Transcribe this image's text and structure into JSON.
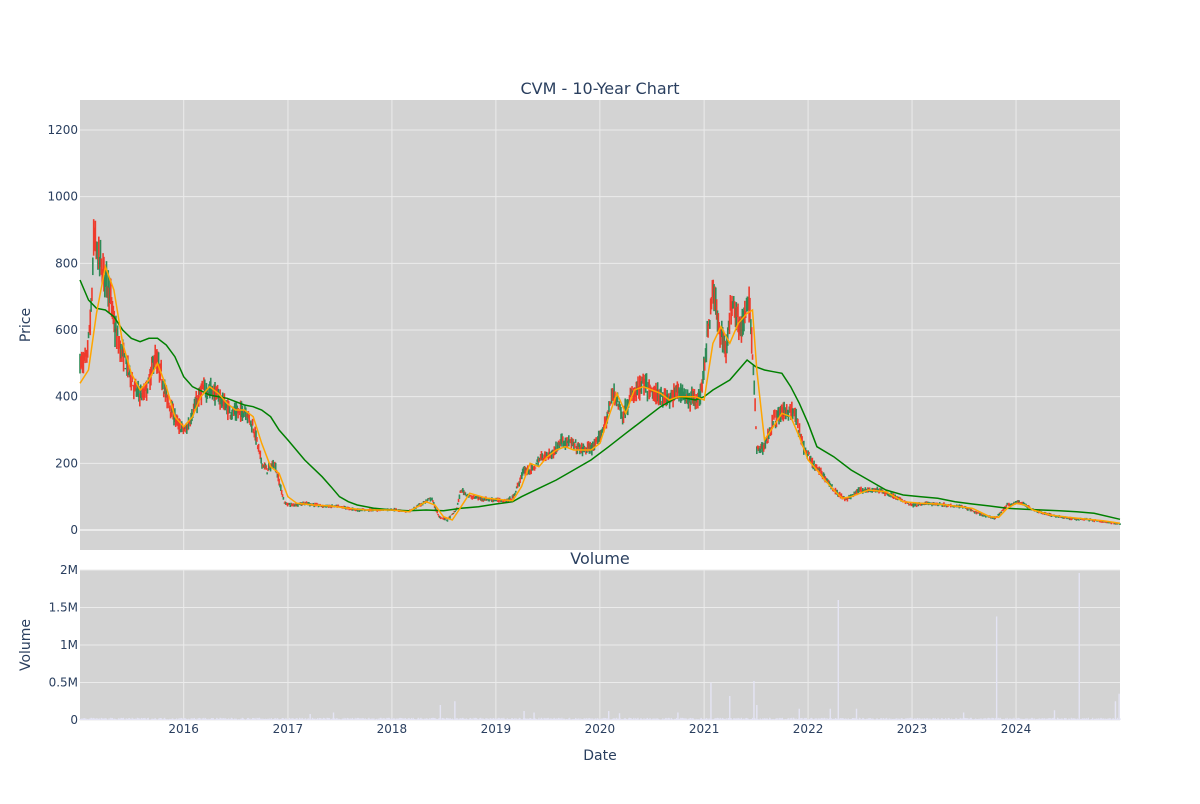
{
  "colors": {
    "plot_bg": "#d3d3d3",
    "grid": "#ebebeb",
    "up_candle": "#2e8b57",
    "down_candle": "#ef3b2c",
    "short_ma": "#ffa500",
    "long_ma": "#008000",
    "volume_bar": "#e4e4f4"
  },
  "chart_data": [
    {
      "type": "candlestick",
      "title": "CVM - 10-Year Chart",
      "xlabel": "",
      "ylabel": "Price",
      "xlim": [
        "2015-01-02",
        "2024-12-31"
      ],
      "ylim": [
        -60,
        1290
      ],
      "grid": true,
      "yticks": [
        0,
        200,
        400,
        600,
        800,
        1000,
        1200
      ],
      "yticklabels": [
        "0",
        "200",
        "400",
        "600",
        "800",
        "1000",
        "1200"
      ],
      "price_points": [
        [
          "2015-01-02",
          500
        ],
        [
          "2015-01-25",
          510
        ],
        [
          "2015-02-10",
          650
        ],
        [
          "2015-02-20",
          880
        ],
        [
          "2015-03-05",
          820
        ],
        [
          "2015-03-25",
          780
        ],
        [
          "2015-04-15",
          720
        ],
        [
          "2015-05-05",
          600
        ],
        [
          "2015-05-25",
          540
        ],
        [
          "2015-06-20",
          480
        ],
        [
          "2015-07-15",
          420
        ],
        [
          "2015-08-10",
          400
        ],
        [
          "2015-09-01",
          440
        ],
        [
          "2015-09-20",
          520
        ],
        [
          "2015-10-10",
          480
        ],
        [
          "2015-11-01",
          400
        ],
        [
          "2015-11-20",
          360
        ],
        [
          "2015-12-15",
          310
        ],
        [
          "2016-01-10",
          300
        ],
        [
          "2016-02-05",
          360
        ],
        [
          "2016-03-05",
          420
        ],
        [
          "2016-04-05",
          420
        ],
        [
          "2016-05-05",
          400
        ],
        [
          "2016-06-05",
          360
        ],
        [
          "2016-07-05",
          350
        ],
        [
          "2016-08-05",
          360
        ],
        [
          "2016-09-05",
          300
        ],
        [
          "2016-10-01",
          200
        ],
        [
          "2016-10-20",
          180
        ],
        [
          "2016-11-15",
          200
        ],
        [
          "2016-12-20",
          80
        ],
        [
          "2017-01-15",
          75
        ],
        [
          "2017-03-01",
          80
        ],
        [
          "2017-05-01",
          72
        ],
        [
          "2017-07-01",
          70
        ],
        [
          "2017-09-01",
          60
        ],
        [
          "2017-11-01",
          60
        ],
        [
          "2018-01-01",
          62
        ],
        [
          "2018-03-01",
          55
        ],
        [
          "2018-04-15",
          78
        ],
        [
          "2018-05-20",
          95
        ],
        [
          "2018-06-15",
          40
        ],
        [
          "2018-07-15",
          30
        ],
        [
          "2018-08-15",
          60
        ],
        [
          "2018-09-01",
          120
        ],
        [
          "2018-10-01",
          100
        ],
        [
          "2018-12-01",
          92
        ],
        [
          "2019-02-01",
          88
        ],
        [
          "2019-03-01",
          95
        ],
        [
          "2019-04-10",
          180
        ],
        [
          "2019-05-10",
          180
        ],
        [
          "2019-06-10",
          220
        ],
        [
          "2019-07-20",
          230
        ],
        [
          "2019-08-20",
          270
        ],
        [
          "2019-09-20",
          260
        ],
        [
          "2019-11-01",
          240
        ],
        [
          "2019-12-15",
          250
        ],
        [
          "2020-01-20",
          320
        ],
        [
          "2020-02-20",
          420
        ],
        [
          "2020-03-20",
          340
        ],
        [
          "2020-04-20",
          400
        ],
        [
          "2020-06-01",
          440
        ],
        [
          "2020-07-01",
          410
        ],
        [
          "2020-09-01",
          390
        ],
        [
          "2020-10-01",
          420
        ],
        [
          "2020-11-15",
          390
        ],
        [
          "2020-12-20",
          400
        ],
        [
          "2021-01-15",
          600
        ],
        [
          "2021-02-01",
          720
        ],
        [
          "2021-02-20",
          620
        ],
        [
          "2021-03-20",
          540
        ],
        [
          "2021-04-10",
          700
        ],
        [
          "2021-05-10",
          600
        ],
        [
          "2021-06-10",
          680
        ],
        [
          "2021-06-25",
          450
        ],
        [
          "2021-07-05",
          240
        ],
        [
          "2021-08-01",
          250
        ],
        [
          "2021-09-01",
          330
        ],
        [
          "2021-10-15",
          360
        ],
        [
          "2021-11-15",
          350
        ],
        [
          "2021-12-15",
          250
        ],
        [
          "2022-01-15",
          200
        ],
        [
          "2022-03-01",
          160
        ],
        [
          "2022-04-01",
          120
        ],
        [
          "2022-05-15",
          90
        ],
        [
          "2022-07-01",
          120
        ],
        [
          "2022-09-01",
          120
        ],
        [
          "2022-11-01",
          100
        ],
        [
          "2023-01-01",
          75
        ],
        [
          "2023-03-01",
          80
        ],
        [
          "2023-05-01",
          75
        ],
        [
          "2023-07-01",
          70
        ],
        [
          "2023-09-01",
          45
        ],
        [
          "2023-10-20",
          35
        ],
        [
          "2023-12-01",
          75
        ],
        [
          "2024-01-15",
          85
        ],
        [
          "2024-03-01",
          60
        ],
        [
          "2024-05-01",
          45
        ],
        [
          "2024-07-01",
          35
        ],
        [
          "2024-09-01",
          32
        ],
        [
          "2024-11-01",
          25
        ],
        [
          "2024-12-31",
          18
        ]
      ],
      "short_ma_points": [
        [
          "2015-01-02",
          440
        ],
        [
          "2015-02-01",
          480
        ],
        [
          "2015-03-01",
          650
        ],
        [
          "2015-04-01",
          790
        ],
        [
          "2015-05-01",
          720
        ],
        [
          "2015-06-01",
          560
        ],
        [
          "2015-07-01",
          470
        ],
        [
          "2015-08-01",
          420
        ],
        [
          "2015-09-01",
          450
        ],
        [
          "2015-10-01",
          500
        ],
        [
          "2015-11-01",
          430
        ],
        [
          "2015-12-01",
          340
        ],
        [
          "2016-01-01",
          310
        ],
        [
          "2016-02-01",
          340
        ],
        [
          "2016-03-01",
          400
        ],
        [
          "2016-04-01",
          430
        ],
        [
          "2016-05-01",
          410
        ],
        [
          "2016-06-01",
          380
        ],
        [
          "2016-07-01",
          360
        ],
        [
          "2016-08-01",
          360
        ],
        [
          "2016-09-01",
          340
        ],
        [
          "2016-10-01",
          260
        ],
        [
          "2016-11-01",
          190
        ],
        [
          "2016-12-01",
          170
        ],
        [
          "2017-01-01",
          100
        ],
        [
          "2017-02-01",
          80
        ],
        [
          "2017-04-01",
          75
        ],
        [
          "2017-06-01",
          72
        ],
        [
          "2017-08-01",
          65
        ],
        [
          "2017-10-01",
          60
        ],
        [
          "2018-01-01",
          60
        ],
        [
          "2018-03-01",
          55
        ],
        [
          "2018-05-01",
          85
        ],
        [
          "2018-06-01",
          75
        ],
        [
          "2018-07-01",
          40
        ],
        [
          "2018-08-01",
          30
        ],
        [
          "2018-09-01",
          70
        ],
        [
          "2018-10-01",
          110
        ],
        [
          "2018-12-01",
          95
        ],
        [
          "2019-02-01",
          90
        ],
        [
          "2019-03-01",
          88
        ],
        [
          "2019-04-01",
          130
        ],
        [
          "2019-05-01",
          200
        ],
        [
          "2019-06-01",
          190
        ],
        [
          "2019-07-01",
          220
        ],
        [
          "2019-08-01",
          240
        ],
        [
          "2019-09-01",
          250
        ],
        [
          "2019-10-01",
          240
        ],
        [
          "2019-12-01",
          240
        ],
        [
          "2020-01-01",
          260
        ],
        [
          "2020-02-01",
          340
        ],
        [
          "2020-03-01",
          410
        ],
        [
          "2020-04-01",
          350
        ],
        [
          "2020-05-01",
          420
        ],
        [
          "2020-06-01",
          430
        ],
        [
          "2020-08-01",
          410
        ],
        [
          "2020-09-01",
          390
        ],
        [
          "2020-10-01",
          400
        ],
        [
          "2020-12-01",
          400
        ],
        [
          "2021-01-01",
          390
        ],
        [
          "2021-02-01",
          560
        ],
        [
          "2021-03-01",
          610
        ],
        [
          "2021-04-01",
          560
        ],
        [
          "2021-05-01",
          620
        ],
        [
          "2021-06-01",
          650
        ],
        [
          "2021-06-20",
          660
        ],
        [
          "2021-07-05",
          480
        ],
        [
          "2021-08-01",
          270
        ],
        [
          "2021-09-01",
          310
        ],
        [
          "2021-10-01",
          350
        ],
        [
          "2021-11-01",
          340
        ],
        [
          "2021-12-01",
          280
        ],
        [
          "2022-01-01",
          210
        ],
        [
          "2022-02-01",
          180
        ],
        [
          "2022-03-01",
          150
        ],
        [
          "2022-04-01",
          120
        ],
        [
          "2022-05-01",
          95
        ],
        [
          "2022-06-01",
          100
        ],
        [
          "2022-08-01",
          120
        ],
        [
          "2022-10-01",
          115
        ],
        [
          "2022-12-01",
          85
        ],
        [
          "2023-02-01",
          80
        ],
        [
          "2023-04-01",
          78
        ],
        [
          "2023-06-01",
          72
        ],
        [
          "2023-08-01",
          65
        ],
        [
          "2023-10-01",
          40
        ],
        [
          "2023-11-01",
          38
        ],
        [
          "2023-12-01",
          65
        ],
        [
          "2024-01-01",
          80
        ],
        [
          "2024-02-01",
          75
        ],
        [
          "2024-03-01",
          60
        ],
        [
          "2024-05-01",
          45
        ],
        [
          "2024-07-01",
          38
        ],
        [
          "2024-09-01",
          33
        ],
        [
          "2024-11-01",
          28
        ],
        [
          "2024-12-31",
          20
        ]
      ],
      "long_ma_points": [
        [
          "2015-01-02",
          750
        ],
        [
          "2015-02-01",
          690
        ],
        [
          "2015-03-01",
          665
        ],
        [
          "2015-04-01",
          660
        ],
        [
          "2015-05-01",
          640
        ],
        [
          "2015-06-01",
          600
        ],
        [
          "2015-07-01",
          575
        ],
        [
          "2015-08-01",
          565
        ],
        [
          "2015-09-01",
          575
        ],
        [
          "2015-10-01",
          575
        ],
        [
          "2015-11-01",
          555
        ],
        [
          "2015-12-01",
          520
        ],
        [
          "2016-01-01",
          460
        ],
        [
          "2016-02-01",
          430
        ],
        [
          "2016-04-01",
          405
        ],
        [
          "2016-06-01",
          395
        ],
        [
          "2016-08-01",
          375
        ],
        [
          "2016-09-01",
          370
        ],
        [
          "2016-10-01",
          360
        ],
        [
          "2016-11-01",
          340
        ],
        [
          "2016-12-01",
          300
        ],
        [
          "2017-01-01",
          270
        ],
        [
          "2017-03-01",
          210
        ],
        [
          "2017-05-01",
          160
        ],
        [
          "2017-06-01",
          130
        ],
        [
          "2017-07-01",
          100
        ],
        [
          "2017-08-01",
          85
        ],
        [
          "2017-09-01",
          75
        ],
        [
          "2017-11-01",
          65
        ],
        [
          "2018-01-01",
          60
        ],
        [
          "2018-03-01",
          58
        ],
        [
          "2018-05-01",
          60
        ],
        [
          "2018-07-01",
          58
        ],
        [
          "2018-09-01",
          65
        ],
        [
          "2018-11-01",
          70
        ],
        [
          "2019-01-01",
          78
        ],
        [
          "2019-03-01",
          85
        ],
        [
          "2019-04-01",
          100
        ],
        [
          "2019-06-01",
          125
        ],
        [
          "2019-08-01",
          150
        ],
        [
          "2019-10-01",
          180
        ],
        [
          "2019-12-01",
          210
        ],
        [
          "2020-02-01",
          250
        ],
        [
          "2020-04-01",
          290
        ],
        [
          "2020-06-01",
          330
        ],
        [
          "2020-08-01",
          370
        ],
        [
          "2020-10-01",
          400
        ],
        [
          "2020-12-01",
          390
        ],
        [
          "2021-01-01",
          400
        ],
        [
          "2021-02-01",
          420
        ],
        [
          "2021-04-01",
          450
        ],
        [
          "2021-06-01",
          510
        ],
        [
          "2021-07-01",
          490
        ],
        [
          "2021-08-01",
          480
        ],
        [
          "2021-09-01",
          475
        ],
        [
          "2021-10-01",
          470
        ],
        [
          "2021-11-01",
          430
        ],
        [
          "2021-12-01",
          380
        ],
        [
          "2022-01-01",
          320
        ],
        [
          "2022-02-01",
          250
        ],
        [
          "2022-04-01",
          220
        ],
        [
          "2022-06-01",
          180
        ],
        [
          "2022-08-01",
          150
        ],
        [
          "2022-10-01",
          120
        ],
        [
          "2022-12-01",
          105
        ],
        [
          "2023-02-01",
          100
        ],
        [
          "2023-04-01",
          95
        ],
        [
          "2023-06-01",
          85
        ],
        [
          "2023-08-01",
          78
        ],
        [
          "2023-10-01",
          72
        ],
        [
          "2023-12-01",
          65
        ],
        [
          "2024-02-01",
          62
        ],
        [
          "2024-04-01",
          60
        ],
        [
          "2024-06-01",
          58
        ],
        [
          "2024-08-01",
          55
        ],
        [
          "2024-10-01",
          50
        ],
        [
          "2024-12-31",
          32
        ]
      ]
    },
    {
      "type": "bar",
      "title": "Volume",
      "xlabel": "Date",
      "ylabel": "Volume",
      "xlim": [
        "2015-01-02",
        "2024-12-31"
      ],
      "ylim": [
        0,
        2000000
      ],
      "grid": true,
      "yticks": [
        0,
        500000,
        1000000,
        1500000,
        2000000
      ],
      "yticklabels": [
        "0",
        "0.5M",
        "1M",
        "1.5M",
        "2M"
      ],
      "xticks": [
        "2016-01-01",
        "2017-01-01",
        "2018-01-01",
        "2019-01-01",
        "2020-01-01",
        "2021-01-01",
        "2022-01-01",
        "2023-01-01",
        "2024-01-01"
      ],
      "xticklabels": [
        "2016",
        "2017",
        "2018",
        "2019",
        "2020",
        "2021",
        "2022",
        "2023",
        "2024"
      ],
      "baseline_volume": 15000,
      "spikes": [
        [
          "2017-03-20",
          80000
        ],
        [
          "2017-06-10",
          100000
        ],
        [
          "2018-06-20",
          200000
        ],
        [
          "2018-08-10",
          250000
        ],
        [
          "2019-04-10",
          120000
        ],
        [
          "2019-05-15",
          100000
        ],
        [
          "2020-02-01",
          120000
        ],
        [
          "2020-03-10",
          90000
        ],
        [
          "2020-10-01",
          100000
        ],
        [
          "2021-01-25",
          500000
        ],
        [
          "2021-04-01",
          320000
        ],
        [
          "2021-06-25",
          520000
        ],
        [
          "2021-07-05",
          200000
        ],
        [
          "2021-12-01",
          150000
        ],
        [
          "2022-03-20",
          150000
        ],
        [
          "2022-04-17",
          1600000
        ],
        [
          "2022-06-20",
          150000
        ],
        [
          "2023-07-01",
          100000
        ],
        [
          "2023-10-25",
          1380000
        ],
        [
          "2024-05-15",
          130000
        ],
        [
          "2024-08-10",
          1960000
        ],
        [
          "2024-12-15",
          250000
        ],
        [
          "2024-12-28",
          350000
        ]
      ]
    }
  ]
}
